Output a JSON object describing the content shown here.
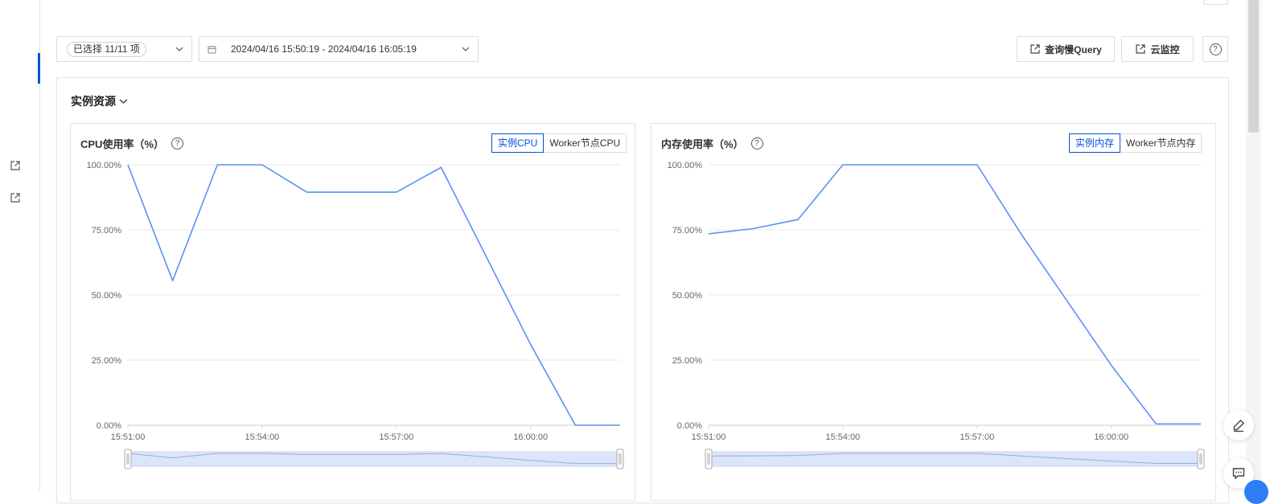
{
  "filter": {
    "selected_label": "已选择 11/11 项"
  },
  "time_range": {
    "value": "2024/04/16 15:50:19 - 2024/04/16 16:05:19"
  },
  "toolbar": {
    "slow_query_label": "查询慢Query",
    "cloud_monitor_label": "云监控",
    "help_label": "?"
  },
  "section": {
    "title": "实例资源"
  },
  "charts": {
    "cpu": {
      "title": "CPU使用率（%）",
      "help": "?",
      "tabs": [
        "实例CPU",
        "Worker节点CPU"
      ],
      "active_tab": 0
    },
    "mem": {
      "title": "内存使用率（%）",
      "help": "?",
      "tabs": [
        "实例内存",
        "Worker节点内存"
      ],
      "active_tab": 0
    }
  },
  "chart_data": [
    {
      "type": "line",
      "title": "CPU使用率（%）",
      "x": [
        "15:51:00",
        "15:52:00",
        "15:53:00",
        "15:54:00",
        "15:55:00",
        "15:56:00",
        "15:57:00",
        "15:58:00",
        "15:59:00",
        "16:00:00",
        "16:01:00",
        "16:02:00"
      ],
      "x_ticks": [
        "15:51:00",
        "15:54:00",
        "15:57:00",
        "16:00:00"
      ],
      "y_ticks": [
        "0.00%",
        "25.00%",
        "50.00%",
        "75.00%",
        "100.00%"
      ],
      "ylim": [
        0,
        100
      ],
      "grid": true,
      "series": [
        {
          "values": [
            100,
            55.5,
            100,
            100,
            89.5,
            89.5,
            89.5,
            99,
            65,
            31,
            0,
            0
          ],
          "color": "#5b8ff9"
        }
      ]
    },
    {
      "type": "line",
      "title": "内存使用率（%）",
      "x": [
        "15:51:00",
        "15:52:00",
        "15:53:00",
        "15:54:00",
        "15:55:00",
        "15:56:00",
        "15:57:00",
        "15:58:00",
        "15:59:00",
        "16:00:00",
        "16:01:00",
        "16:02:00"
      ],
      "x_ticks": [
        "15:51:00",
        "15:54:00",
        "15:57:00",
        "16:00:00"
      ],
      "y_ticks": [
        "0.00%",
        "25.00%",
        "50.00%",
        "75.00%",
        "100.00%"
      ],
      "ylim": [
        0,
        100
      ],
      "grid": true,
      "series": [
        {
          "values": [
            73.5,
            75.5,
            79,
            100,
            100,
            100,
            100,
            73,
            48,
            23,
            0.5,
            0.5
          ],
          "color": "#5b8ff9"
        }
      ]
    }
  ],
  "colors": {
    "accent": "#0052d9",
    "line": "#5b8ff9",
    "brush_fill": "#dbe5fb"
  },
  "icons": [
    "external-link-icon",
    "calendar-icon",
    "chevron-down-icon",
    "help-icon",
    "edit-icon",
    "chat-icon"
  ]
}
